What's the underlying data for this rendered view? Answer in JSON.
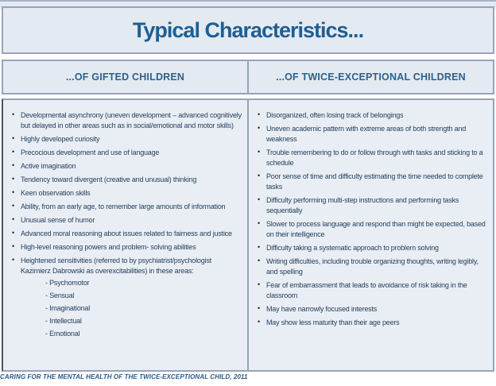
{
  "title": "Typical Characteristics...",
  "markers": {
    "bullet": "•",
    "dash": "- "
  },
  "columns": [
    {
      "header": "...OF GIFTED CHILDREN",
      "items": [
        {
          "text": "Developmental asynchrony (uneven development – advanced cognitively but delayed in other areas such as in social/emotional and motor skills)"
        },
        {
          "text": "Highly developed curiosity"
        },
        {
          "text": "Precocious development and use of language"
        },
        {
          "text": "Active imagination"
        },
        {
          "text": "Tendency toward divergent (creative and unusual) thinking"
        },
        {
          "text": "Keen observation skills"
        },
        {
          "text": "Ability, from an early age, to remember large amounts of information"
        },
        {
          "text": "Unusual sense of humor"
        },
        {
          "text": "Advanced moral reasoning about issues related to fairness and justice"
        },
        {
          "text": "High-level reasoning powers and problem- solving abilities"
        },
        {
          "text": "Heightened sensitivities (referred to by psychiatrist/psychologist Kazimierz Dabrowski as overexcitabilities) in these areas:",
          "subitems": [
            "Psychomotor",
            "Sensual",
            "Imaginational",
            "Intellectual",
            "Emotional"
          ]
        }
      ]
    },
    {
      "header": "...OF TWICE-EXCEPTIONAL CHILDREN",
      "items": [
        {
          "text": "Disorganized, often losing track of belongings"
        },
        {
          "text": "Uneven academic pattern with extreme areas of both strength and weakness"
        },
        {
          "text": "Trouble remembering to do or follow through with tasks and sticking to a schedule"
        },
        {
          "text": "Poor sense of time and difficulty estimating the time needed to complete tasks"
        },
        {
          "text": "Difficulty performing multi-step instructions and performing tasks sequentially"
        },
        {
          "text": "Slower to process language and respond than might be expected, based on their intelligence"
        },
        {
          "text": "Difficulty taking a systematic approach to problem solving"
        },
        {
          "text": "Writing difficulties, including trouble organizing thoughts, writing legibly, and spelling"
        },
        {
          "text": "Fear of embarrassment that leads to avoidance of risk taking in the classroom"
        },
        {
          "text": "May have narrowly focused interests"
        },
        {
          "text": "May show less maturity than their age peers"
        }
      ]
    }
  ],
  "footer": "CARING FOR THE MENTAL HEALTH OF THE TWICE-EXCEPTIONAL CHILD, 2011",
  "colors": {
    "panel_bg": "#e3eaf2",
    "content_bg": "#e9eef5",
    "border": "#98a3b9",
    "title_text": "#1e5f93",
    "header_text": "#2c618e",
    "body_text": "#25405c",
    "footer_text": "#27598a"
  }
}
